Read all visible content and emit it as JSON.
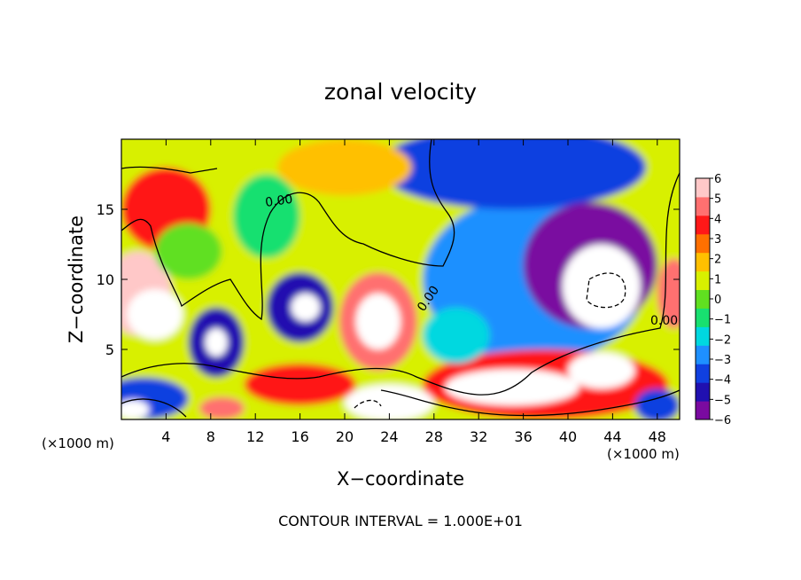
{
  "chart_data": {
    "type": "heatmap",
    "title": "zonal velocity",
    "xlabel": "X−coordinate",
    "ylabel": "Z−coordinate",
    "x_unit_left": "(×1000 m)",
    "x_unit_right": "(×1000 m)",
    "xlim": [
      0,
      50
    ],
    "ylim": [
      0,
      20
    ],
    "x_ticks": [
      4,
      8,
      12,
      16,
      20,
      24,
      28,
      32,
      36,
      40,
      44,
      48
    ],
    "y_ticks": [
      5,
      10,
      15
    ],
    "colorbar": {
      "ticks": [
        "6",
        "5",
        "4",
        "3",
        "2",
        "1",
        "0",
        "−1",
        "−2",
        "−3",
        "−4",
        "−5",
        "−6"
      ],
      "range": [
        -6,
        6
      ],
      "colors": [
        "#7a0aa0",
        "#2010b0",
        "#1040e0",
        "#1e90ff",
        "#00d8e0",
        "#18e070",
        "#60e020",
        "#d8f000",
        "#ffc000",
        "#ff7000",
        "#ff1818",
        "#ff7070",
        "#ffc8c8"
      ]
    },
    "contour_labels": [
      "0.00",
      "0.00",
      "0.00"
    ],
    "grid": false,
    "note": "CONTOUR INTERVAL = 1.000E+01",
    "field_blobs": [
      {
        "x": 25,
        "y": 12,
        "rx": 40,
        "ry": 14,
        "v": 0.6
      },
      {
        "x": 4,
        "y": 15,
        "rx": 4,
        "ry": 3,
        "v": 4
      },
      {
        "x": 1.5,
        "y": 9,
        "rx": 3,
        "ry": 3,
        "v": 5.5
      },
      {
        "x": 3,
        "y": 7.5,
        "rx": 2.5,
        "ry": 1.8,
        "v": 7
      },
      {
        "x": 8.5,
        "y": 5.5,
        "rx": 2.5,
        "ry": 2.5,
        "v": -4.5
      },
      {
        "x": 8.5,
        "y": 5.5,
        "rx": 1,
        "ry": 1,
        "v": 7
      },
      {
        "x": 16,
        "y": 8,
        "rx": 3,
        "ry": 2.5,
        "v": -4.5
      },
      {
        "x": 16.5,
        "y": 8,
        "rx": 1.3,
        "ry": 1,
        "v": 7
      },
      {
        "x": 23,
        "y": 7,
        "rx": 3.5,
        "ry": 3.5,
        "v": 4.5
      },
      {
        "x": 23,
        "y": 7,
        "rx": 2,
        "ry": 2,
        "v": 7
      },
      {
        "x": 37,
        "y": 10,
        "rx": 10,
        "ry": 6,
        "v": -2.8
      },
      {
        "x": 35,
        "y": 18,
        "rx": 12,
        "ry": 3,
        "v": -4
      },
      {
        "x": 42,
        "y": 11,
        "rx": 6,
        "ry": 4.5,
        "v": -5.5
      },
      {
        "x": 43,
        "y": 9.5,
        "rx": 3.5,
        "ry": 3,
        "v": 7
      },
      {
        "x": 38,
        "y": 2.5,
        "rx": 11,
        "ry": 2.5,
        "v": 4
      },
      {
        "x": 35,
        "y": 2.3,
        "rx": 6,
        "ry": 1.3,
        "v": 7
      },
      {
        "x": 43,
        "y": 3.5,
        "rx": 3,
        "ry": 1.3,
        "v": 7
      },
      {
        "x": 48,
        "y": 1,
        "rx": 2,
        "ry": 1.2,
        "v": -4
      },
      {
        "x": 49.5,
        "y": 9,
        "rx": 1.5,
        "ry": 2.5,
        "v": 5
      },
      {
        "x": 2,
        "y": 1.5,
        "rx": 4,
        "ry": 1.5,
        "v": -4
      },
      {
        "x": 1,
        "y": 0.7,
        "rx": 1.5,
        "ry": 0.7,
        "v": 7
      },
      {
        "x": 9,
        "y": 0.8,
        "rx": 2,
        "ry": 0.8,
        "v": 5
      },
      {
        "x": 24,
        "y": 1.2,
        "rx": 4,
        "ry": 1.3,
        "v": 7
      },
      {
        "x": 16,
        "y": 2.5,
        "rx": 5,
        "ry": 1.5,
        "v": 4
      },
      {
        "x": 20,
        "y": 18,
        "rx": 6,
        "ry": 2,
        "v": 2
      },
      {
        "x": 13,
        "y": 14.5,
        "rx": 3,
        "ry": 3,
        "v": -0.5
      },
      {
        "x": 6,
        "y": 12,
        "rx": 3,
        "ry": 2,
        "v": 0.2
      },
      {
        "x": 30,
        "y": 6,
        "rx": 3,
        "ry": 2,
        "v": -2
      }
    ]
  }
}
